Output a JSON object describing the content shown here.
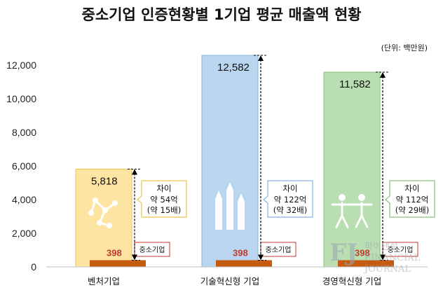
{
  "title": "중소기업 인증현황별 1기업 평균 매출액 현황",
  "unit_label": "(단위: 백만원)",
  "chart_data": {
    "type": "bar",
    "title": "중소기업 인증현황별 1기업 평균 매출액 현황",
    "unit": "(단위: 백만원)",
    "categories": [
      "벤처기업",
      "기술혁신형 기업",
      "경영혁신형 기업"
    ],
    "series": [
      {
        "values": [
          5818,
          12582,
          11582
        ],
        "value_labels": [
          "5,818",
          "12,582",
          "11,582"
        ]
      },
      {
        "name": "중소기업",
        "values": [
          398,
          398,
          398
        ],
        "value_labels": [
          "398",
          "398",
          "398"
        ]
      }
    ],
    "yticks": [
      0,
      2000,
      4000,
      6000,
      8000,
      10000,
      12000
    ],
    "ytick_labels": [
      "0",
      "2,000",
      "4,000",
      "6,000",
      "8,000",
      "10,000",
      "12,000"
    ],
    "ylim": [
      0,
      13000
    ],
    "grid": false,
    "callouts": [
      {
        "title": "차이",
        "line1": "약 54억",
        "line2": "(약 15배)"
      },
      {
        "title": "차이",
        "line1": "약 122억",
        "line2": "(약 32배)"
      },
      {
        "title": "차이",
        "line1": "약 112억",
        "line2": "(약 29배)"
      }
    ],
    "colors": {
      "bar_fills": [
        "#fde4a3",
        "#b9d5ef",
        "#b9deb1"
      ],
      "bar_strokes": [
        "#f0c24d",
        "#88b3dd",
        "#86c27a"
      ],
      "sme_bar": "#c55a11",
      "callout_borders": [
        "#f0c24d",
        "#88b3dd",
        "#86c27a"
      ],
      "label_box_border": "#c0392b"
    }
  },
  "watermark": {
    "mark": "FJ",
    "line1": "파이낸셜",
    "line2": "FINANCIAL",
    "line3": "JOURNAL"
  }
}
